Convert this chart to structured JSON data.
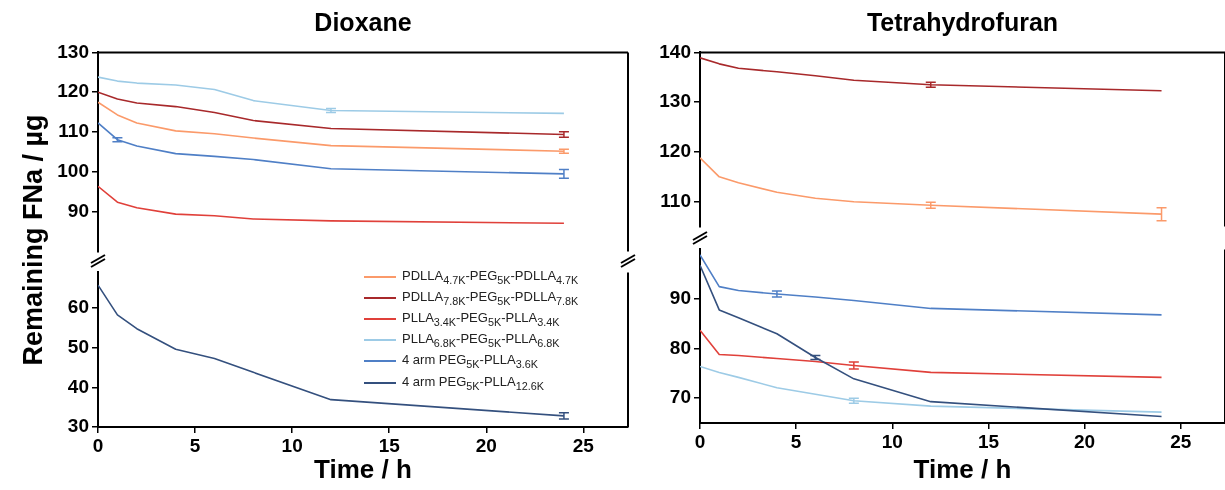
{
  "chart_data": [
    {
      "type": "line",
      "title": "Dioxane",
      "ylabel": "Remaining FNa / µg",
      "x": [
        0,
        1,
        2,
        4,
        6,
        8,
        12,
        24
      ],
      "xlim": [
        0,
        27.3
      ],
      "ylim": [
        80,
        130
      ],
      "yticks": [
        90,
        100,
        110,
        120,
        130
      ],
      "tick_labels": "y",
      "marker": "none",
      "grid": false,
      "legend": "bottom right",
      "series": [
        {
          "name": "PDLLA$_{4.7K}$-PEG$_{5K}$-PDLLA$_{4.7K}$",
          "color": "#fb9a6a",
          "values": [
            117.5,
            114.3,
            112.3,
            110.3,
            109.6,
            108.5,
            106.6,
            105.2
          ],
          "errors": [
            null,
            null,
            null,
            null,
            null,
            null,
            null,
            0.5
          ]
        },
        {
          "name": "PDLLA$_{7.8K}$-PEG$_{5K}$-PDLLA$_{7.8K}$",
          "color": "#a8292b",
          "values": [
            120,
            118.3,
            117.3,
            116.4,
            114.9,
            112.9,
            110.9,
            109.4
          ],
          "errors": [
            null,
            null,
            null,
            null,
            null,
            null,
            null,
            0.7
          ]
        },
        {
          "name": "PLLA$_{3.4K}$-PEG$_{5K}$-PLLA$_{3.4K}$",
          "color": "#e0403a",
          "values": [
            96.4,
            92.4,
            91.0,
            89.4,
            89.0,
            88.2,
            87.7,
            87.1
          ],
          "errors": [
            null,
            null,
            null,
            null,
            null,
            null,
            null,
            null
          ]
        },
        {
          "name": "PLLA$_{6.8K}$-PEG$_{5K}$-PLLA$_{6.8K}$",
          "color": "#9dcbe6",
          "values": [
            123.8,
            122.8,
            122.3,
            121.8,
            120.7,
            117.9,
            115.4,
            114.7
          ],
          "errors": [
            null,
            null,
            null,
            null,
            null,
            null,
            0.5,
            null
          ]
        },
        {
          "name": "4 arm PEG$_{5K}$-PLLA$_{3.6K}$",
          "color": "#4f7fc6",
          "values": [
            112.3,
            108.1,
            106.5,
            104.6,
            103.9,
            103.1,
            100.8,
            99.5
          ],
          "errors": [
            null,
            0.5,
            null,
            null,
            null,
            null,
            null,
            1.1
          ]
        }
      ]
    },
    {
      "type": "line",
      "xlabel": "Time / h",
      "x": [
        0,
        1,
        2,
        4,
        6,
        8,
        12,
        24
      ],
      "xlim": [
        0,
        27.3
      ],
      "xticks": [
        0,
        5,
        10,
        15,
        20,
        25
      ],
      "ylim": [
        30,
        69
      ],
      "yticks": [
        30,
        40,
        50,
        60
      ],
      "marker": "none",
      "grid": false,
      "legend": "bottom right",
      "series": [
        {
          "name": "4 arm PEG$_{5K}$-PLLA$_{12.6K}$",
          "color": "#34507e",
          "values": [
            65.8,
            58.3,
            54.8,
            49.6,
            47.3,
            43.8,
            36.9,
            32.8
          ],
          "errors": [
            null,
            null,
            null,
            null,
            null,
            null,
            null,
            0.8
          ]
        }
      ]
    },
    {
      "type": "line",
      "title": "Tetrahydrofuran",
      "x": [
        0,
        1,
        2,
        4,
        6,
        8,
        12,
        24
      ],
      "xlim": [
        0,
        27.3
      ],
      "ylim": [
        105,
        140
      ],
      "yticks": [
        110,
        120,
        130,
        140
      ],
      "tick_labels": "y",
      "marker": "none",
      "grid": false,
      "series": [
        {
          "color": "#a8292b",
          "values": [
            138.9,
            137.7,
            136.8,
            136.1,
            135.3,
            134.4,
            133.5,
            132.3
          ],
          "errors": [
            null,
            null,
            null,
            null,
            null,
            null,
            0.5,
            null
          ]
        },
        {
          "color": "#fb9a6a",
          "values": [
            118.8,
            115.0,
            113.8,
            111.9,
            110.7,
            110.0,
            109.3,
            107.5
          ],
          "errors": [
            null,
            null,
            null,
            null,
            null,
            null,
            0.6,
            1.3
          ]
        }
      ]
    },
    {
      "type": "line",
      "xlabel": "Time / h",
      "x": [
        0,
        1,
        2,
        4,
        6,
        8,
        12,
        24
      ],
      "xlim": [
        0,
        27.3
      ],
      "xticks": [
        0,
        5,
        10,
        15,
        20,
        25
      ],
      "ylim": [
        65,
        100
      ],
      "yticks": [
        70,
        80,
        90
      ],
      "marker": "none",
      "grid": false,
      "series": [
        {
          "color": "#4f7fc6",
          "values": [
            98.9,
            92.5,
            91.7,
            91.0,
            90.4,
            89.7,
            88.1,
            86.8
          ],
          "errors": [
            null,
            null,
            null,
            0.6,
            null,
            null,
            null,
            null
          ]
        },
        {
          "color": "#34507e",
          "values": [
            96.8,
            87.8,
            86.2,
            83.0,
            78.2,
            73.9,
            69.3,
            66.3
          ],
          "errors": [
            null,
            null,
            null,
            null,
            0.4,
            null,
            null,
            null
          ]
        },
        {
          "color": "#e0403a",
          "values": [
            83.7,
            78.8,
            78.6,
            78.0,
            77.4,
            76.6,
            75.2,
            74.2
          ],
          "errors": [
            null,
            null,
            null,
            null,
            null,
            0.7,
            null,
            null
          ]
        },
        {
          "color": "#9dcbe6",
          "values": [
            76.4,
            75.2,
            74.2,
            72.1,
            70.8,
            69.5,
            68.4,
            67.2
          ],
          "errors": [
            null,
            null,
            null,
            null,
            null,
            0.5,
            null,
            null
          ]
        }
      ]
    }
  ]
}
